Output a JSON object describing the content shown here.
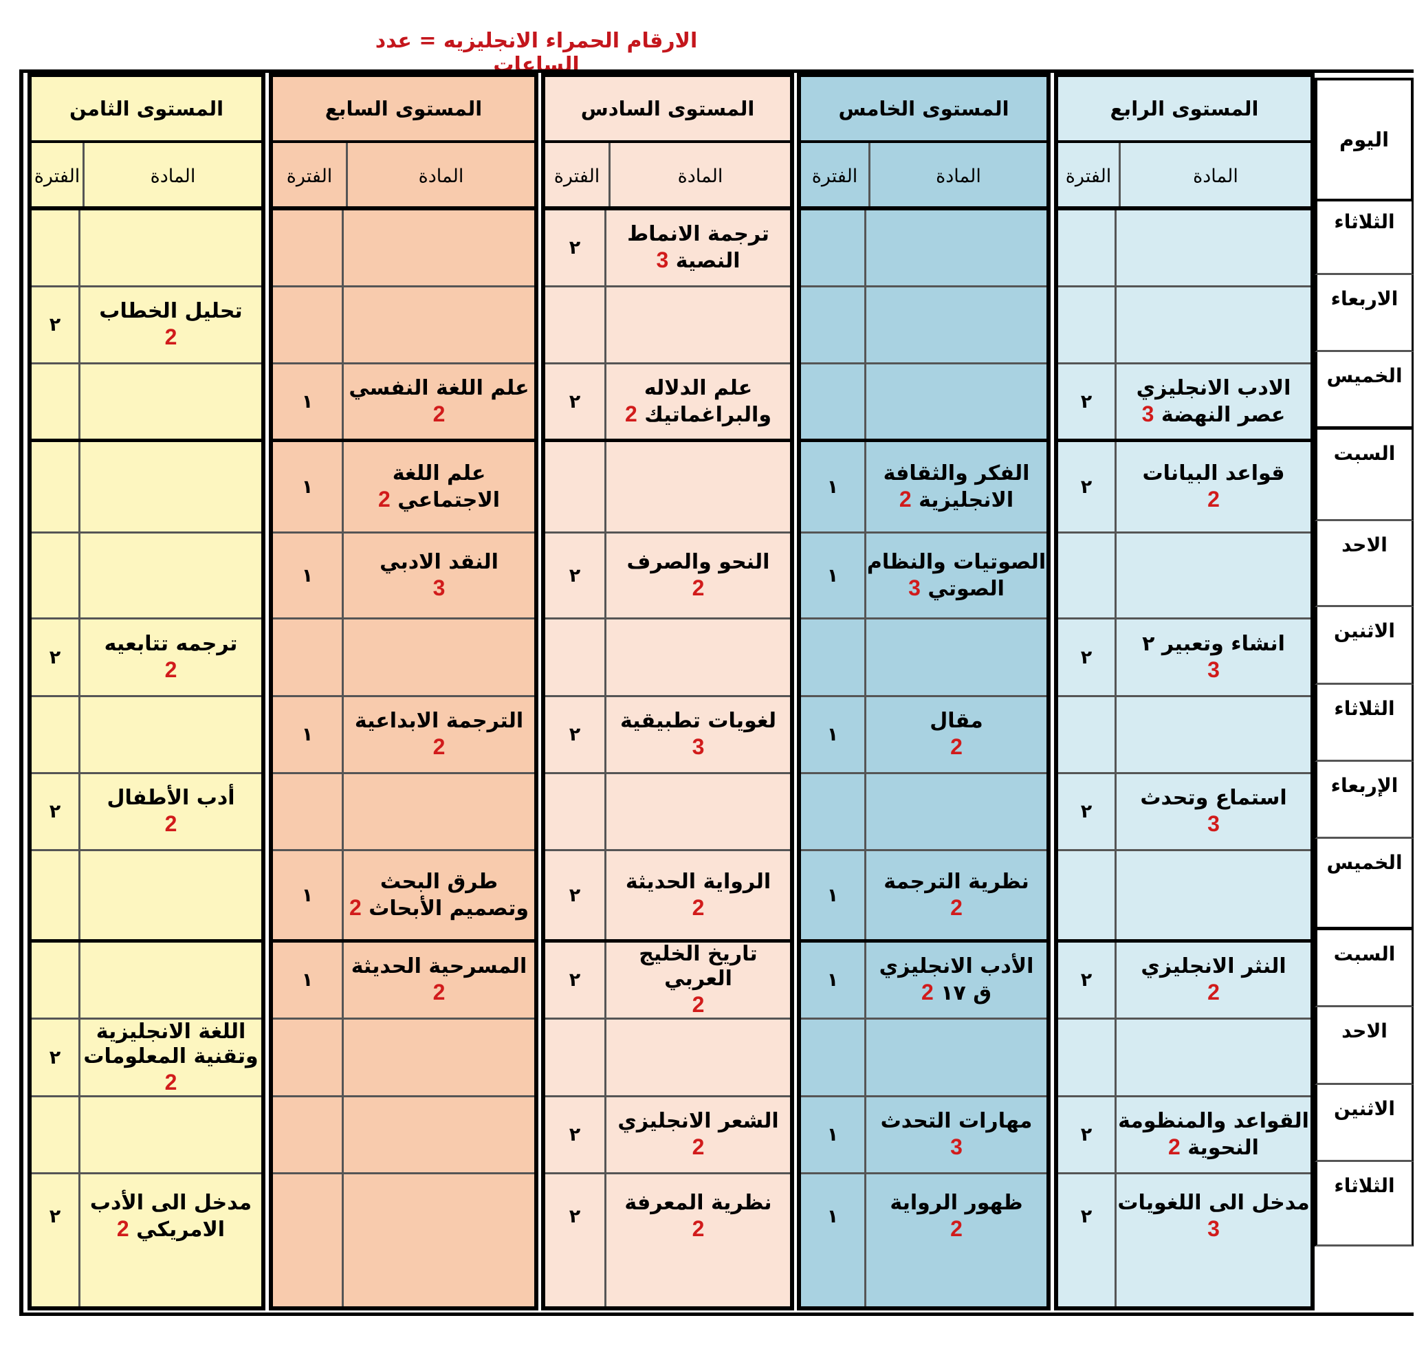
{
  "title": "الارقام الحمراء الانجليزيه = عدد الساعات",
  "headers": {
    "day": "اليوم",
    "subject": "المادة",
    "period": "الفترة"
  },
  "days": [
    "الثلاثاء",
    "الاربعاء",
    "الخميس",
    "السبت",
    "الاحد",
    "الاثنين",
    "الثلاثاء",
    "الإربعاء",
    "الخميس",
    "السبت",
    "الاحد",
    "الاثنين",
    "الثلاثاء"
  ],
  "levels": [
    {
      "name": "المستوى الرابع",
      "rows": [
        {
          "s1": "",
          "s2": "",
          "h": "",
          "p": ""
        },
        {
          "s1": "",
          "s2": "",
          "h": "",
          "p": ""
        },
        {
          "s1": "الادب الانجليزي",
          "s2": "عصر النهضة",
          "h": "3",
          "p": "٢"
        },
        {
          "s1": "قواعد البيانات",
          "s2": "",
          "h": "2",
          "p": "٢"
        },
        {
          "s1": "",
          "s2": "",
          "h": "",
          "p": ""
        },
        {
          "s1": "انشاء وتعبير ٢",
          "s2": "",
          "h": "3",
          "p": "٢"
        },
        {
          "s1": "",
          "s2": "",
          "h": "",
          "p": ""
        },
        {
          "s1": "استماع وتحدث",
          "s2": "",
          "h": "3",
          "p": "٢"
        },
        {
          "s1": "",
          "s2": "",
          "h": "",
          "p": ""
        },
        {
          "s1": "النثر الانجليزي",
          "s2": "",
          "h": "2",
          "p": "٢"
        },
        {
          "s1": "",
          "s2": "",
          "h": "",
          "p": ""
        },
        {
          "s1": "القواعد والمنظومة",
          "s2": "النحوية",
          "h": "2",
          "p": "٢"
        },
        {
          "s1": "مدخل الى اللغويات",
          "s2": "",
          "h": "3",
          "p": "٢"
        }
      ]
    },
    {
      "name": "المستوى الخامس",
      "rows": [
        {
          "s1": "",
          "s2": "",
          "h": "",
          "p": ""
        },
        {
          "s1": "",
          "s2": "",
          "h": "",
          "p": ""
        },
        {
          "s1": "",
          "s2": "",
          "h": "",
          "p": ""
        },
        {
          "s1": "الفكر والثقافة",
          "s2": "الانجليزية",
          "h": "2",
          "p": "١"
        },
        {
          "s1": "الصوتيات والنظام",
          "s2": "الصوتي",
          "h": "3",
          "p": "١"
        },
        {
          "s1": "",
          "s2": "",
          "h": "",
          "p": ""
        },
        {
          "s1": "مقال",
          "s2": "",
          "h": "2",
          "p": "١"
        },
        {
          "s1": "",
          "s2": "",
          "h": "",
          "p": ""
        },
        {
          "s1": "نظرية الترجمة",
          "s2": "",
          "h": "2",
          "p": "١"
        },
        {
          "s1": "الأدب الانجليزي",
          "s2": "ق ١٧",
          "h": "2",
          "p": "١"
        },
        {
          "s1": "",
          "s2": "",
          "h": "",
          "p": ""
        },
        {
          "s1": "مهارات التحدث",
          "s2": "",
          "h": "3",
          "p": "١"
        },
        {
          "s1": "ظهور الرواية",
          "s2": "",
          "h": "2",
          "p": "١"
        }
      ]
    },
    {
      "name": "المستوى السادس",
      "rows": [
        {
          "s1": "ترجمة الانماط",
          "s2": "النصية",
          "h": "3",
          "p": "٢"
        },
        {
          "s1": "",
          "s2": "",
          "h": "",
          "p": ""
        },
        {
          "s1": "علم الدلاله",
          "s2": "والبراغماتيك",
          "h": "2",
          "p": "٢"
        },
        {
          "s1": "",
          "s2": "",
          "h": "",
          "p": ""
        },
        {
          "s1": "النحو والصرف",
          "s2": "",
          "h": "2",
          "p": "٢"
        },
        {
          "s1": "",
          "s2": "",
          "h": "",
          "p": ""
        },
        {
          "s1": "لغويات تطبيقية",
          "s2": "",
          "h": "3",
          "p": "٢"
        },
        {
          "s1": "",
          "s2": "",
          "h": "",
          "p": ""
        },
        {
          "s1": "الرواية الحديثة",
          "s2": "",
          "h": "2",
          "p": "٢"
        },
        {
          "s1": "تاريخ الخليج العربي",
          "s2": "",
          "h": "2",
          "p": "٢"
        },
        {
          "s1": "",
          "s2": "",
          "h": "",
          "p": ""
        },
        {
          "s1": "الشعر الانجليزي",
          "s2": "",
          "h": "2",
          "p": "٢"
        },
        {
          "s1": "نظرية المعرفة",
          "s2": "",
          "h": "2",
          "p": "٢"
        }
      ]
    },
    {
      "name": "المستوى السابع",
      "rows": [
        {
          "s1": "",
          "s2": "",
          "h": "",
          "p": ""
        },
        {
          "s1": "",
          "s2": "",
          "h": "",
          "p": ""
        },
        {
          "s1": "علم اللغة النفسي",
          "s2": "",
          "h": "2",
          "p": "١"
        },
        {
          "s1": "علم اللغة",
          "s2": "الاجتماعي",
          "h": "2",
          "p": "١"
        },
        {
          "s1": "النقد الادبي",
          "s2": "",
          "h": "3",
          "p": "١"
        },
        {
          "s1": "",
          "s2": "",
          "h": "",
          "p": ""
        },
        {
          "s1": "الترجمة الابداعية",
          "s2": "",
          "h": "2",
          "p": "١"
        },
        {
          "s1": "",
          "s2": "",
          "h": "",
          "p": ""
        },
        {
          "s1": "طرق البحث",
          "s2": "وتصميم الأبحاث",
          "h": "2",
          "p": "١"
        },
        {
          "s1": "المسرحية الحديثة",
          "s2": "",
          "h": "2",
          "p": "١"
        },
        {
          "s1": "",
          "s2": "",
          "h": "",
          "p": ""
        },
        {
          "s1": "",
          "s2": "",
          "h": "",
          "p": ""
        },
        {
          "s1": "",
          "s2": "",
          "h": "",
          "p": ""
        }
      ]
    },
    {
      "name": "المستوى الثامن",
      "rows": [
        {
          "s1": "",
          "s2": "",
          "h": "",
          "p": ""
        },
        {
          "s1": "تحليل الخطاب",
          "s2": "",
          "h": "2",
          "p": "٢"
        },
        {
          "s1": "",
          "s2": "",
          "h": "",
          "p": ""
        },
        {
          "s1": "",
          "s2": "",
          "h": "",
          "p": ""
        },
        {
          "s1": "",
          "s2": "",
          "h": "",
          "p": ""
        },
        {
          "s1": "ترجمه تتابعيه",
          "s2": "",
          "h": "2",
          "p": "٢"
        },
        {
          "s1": "",
          "s2": "",
          "h": "",
          "p": ""
        },
        {
          "s1": "أدب الأطفال",
          "s2": "",
          "h": "2",
          "p": "٢"
        },
        {
          "s1": "",
          "s2": "",
          "h": "",
          "p": ""
        },
        {
          "s1": "",
          "s2": "",
          "h": "",
          "p": ""
        },
        {
          "s1": "اللغة الانجليزية",
          "s2": "وتقنية المعلومات",
          "h": "2",
          "p": "٢"
        },
        {
          "s1": "",
          "s2": "",
          "h": "",
          "p": ""
        },
        {
          "s1": "مدخل الى الأدب",
          "s2": "الامريكي",
          "h": "2",
          "p": "٢"
        }
      ]
    }
  ],
  "colors": {
    "level4": "#d6ebf2",
    "level5": "#a9d2e1",
    "level6": "#fbe3d6",
    "level7": "#f8cbad",
    "level8": "#fdf6c0",
    "hours": "#d11b1b"
  }
}
